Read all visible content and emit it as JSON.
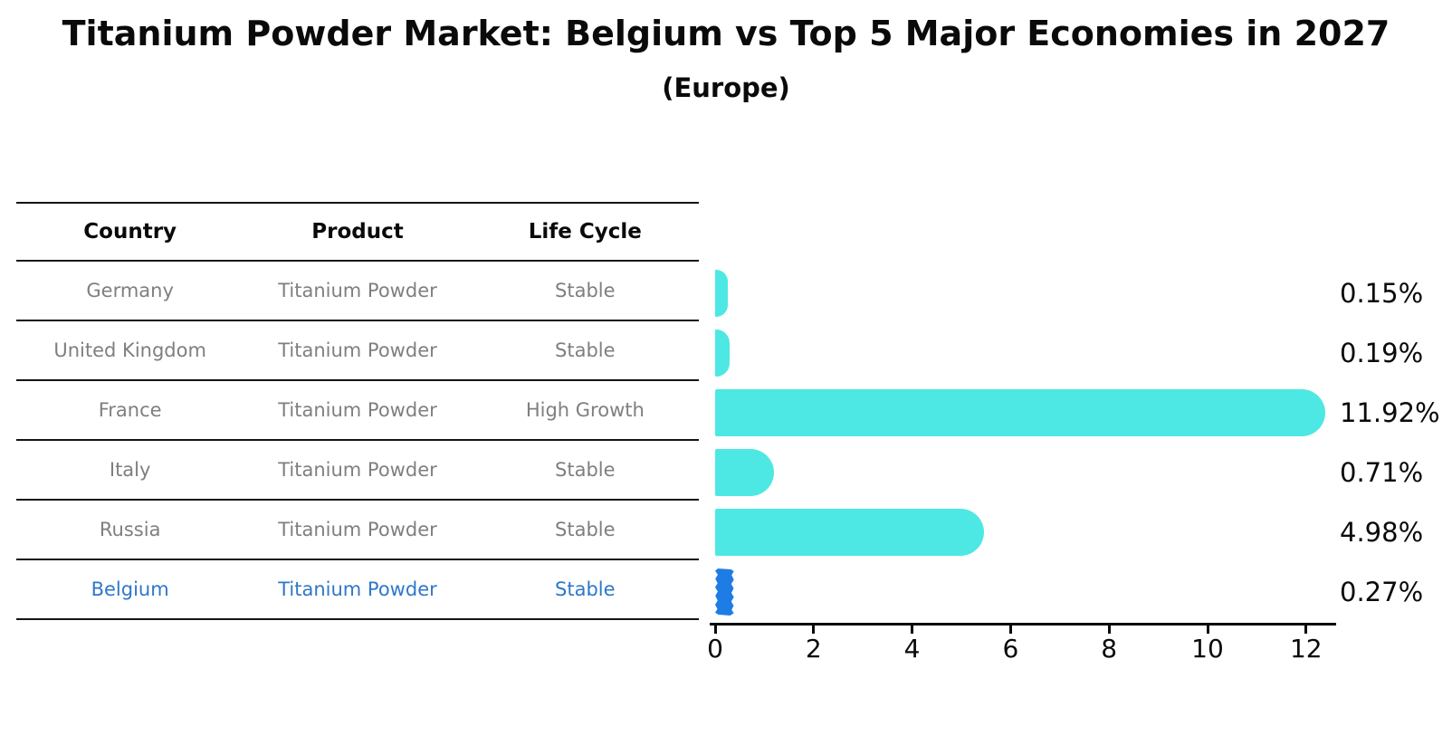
{
  "title": "Titanium Powder Market: Belgium vs Top 5 Major Economies in 2027",
  "subtitle": "(Europe)",
  "table": {
    "headers": [
      "Country",
      "Product",
      "Life Cycle"
    ],
    "rows": [
      {
        "country": "Germany",
        "product": "Titanium Powder",
        "life_cycle": "Stable",
        "highlighted": false
      },
      {
        "country": "United Kingdom",
        "product": "Titanium Powder",
        "life_cycle": "Stable",
        "highlighted": false
      },
      {
        "country": "France",
        "product": "Titanium Powder",
        "life_cycle": "High Growth",
        "highlighted": false
      },
      {
        "country": "Italy",
        "product": "Titanium Powder",
        "life_cycle": "Stable",
        "highlighted": false
      },
      {
        "country": "Russia",
        "product": "Titanium Powder",
        "life_cycle": "Stable",
        "highlighted": false
      },
      {
        "country": "Belgium",
        "product": "Titanium Powder",
        "life_cycle": "Stable",
        "highlighted": true
      }
    ]
  },
  "chart_data": {
    "type": "bar",
    "orientation": "horizontal",
    "title": "Titanium Powder Market: Belgium vs Top 5 Major Economies in 2027 (Europe)",
    "categories": [
      "Germany",
      "United Kingdom",
      "France",
      "Italy",
      "Russia",
      "Belgium"
    ],
    "values": [
      0.15,
      0.19,
      11.92,
      0.71,
      4.98,
      0.27
    ],
    "labels": [
      "0.15%",
      "0.19%",
      "11.92%",
      "0.71%",
      "4.98%",
      "0.27%"
    ],
    "x_ticks": [
      "0",
      "2",
      "4",
      "6",
      "8",
      "10",
      "12"
    ],
    "xlim": [
      0,
      12.6
    ],
    "xlabel": "",
    "ylabel": "",
    "grid": false,
    "legend": "none",
    "highlight_index": 5,
    "bar_color": "#4DE8E4",
    "highlight_bar_color": "#1E7DE5",
    "highlight_text_color": "#2E78C8",
    "text_color": "#7F7F7F"
  }
}
